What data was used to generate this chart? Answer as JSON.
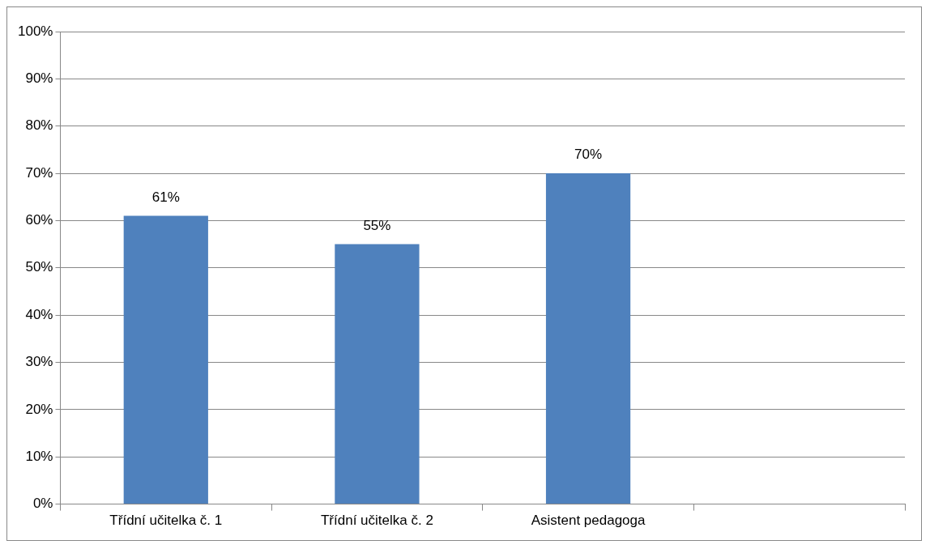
{
  "chart_data": {
    "type": "bar",
    "categories": [
      "Třídní učitelka č. 1",
      "Třídní učitelka č. 2",
      "Asistent pedagoga",
      null
    ],
    "values": [
      61,
      55,
      70,
      null
    ],
    "value_labels": [
      "61%",
      "55%",
      "70%",
      null
    ],
    "color": "#4f81bd",
    "ylim": [
      0,
      100
    ],
    "yticks": [
      {
        "value": 0,
        "label": "0%"
      },
      {
        "value": 10,
        "label": "10%"
      },
      {
        "value": 20,
        "label": "20%"
      },
      {
        "value": 30,
        "label": "30%"
      },
      {
        "value": 40,
        "label": "40%"
      },
      {
        "value": 50,
        "label": "50%"
      },
      {
        "value": 60,
        "label": "60%"
      },
      {
        "value": 70,
        "label": "70%"
      },
      {
        "value": 80,
        "label": "80%"
      },
      {
        "value": 90,
        "label": "90%"
      },
      {
        "value": 100,
        "label": "100%"
      }
    ],
    "grid": "y",
    "legend": false
  }
}
